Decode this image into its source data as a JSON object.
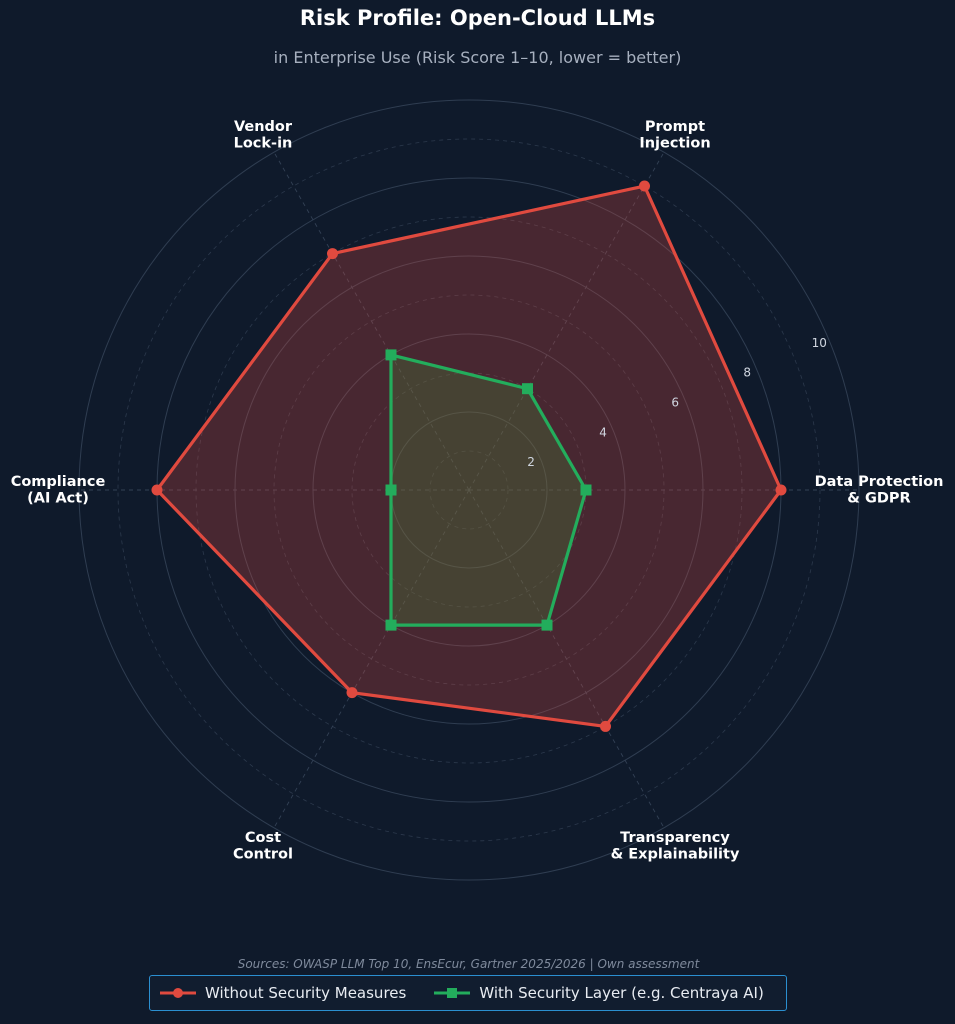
{
  "chart_data": {
    "type": "radar",
    "title": "Risk Profile: Open-Cloud LLMs",
    "subtitle": "in Enterprise Use (Risk Score 1–10, lower = better)",
    "axes": [
      "Data Protection\n& GDPR",
      "Prompt\nInjection",
      "Vendor\nLock-in",
      "Compliance\n(AI Act)",
      "Cost\nControl",
      "Transparency\n& Explainability"
    ],
    "rlim": [
      0,
      10
    ],
    "rticks": [
      2,
      4,
      6,
      8,
      10
    ],
    "grid": true,
    "series": [
      {
        "name": "Without Security Measures",
        "values": [
          8,
          9,
          7,
          8,
          6,
          7
        ],
        "color": "#e04a3f",
        "fill": "#e04a3f",
        "marker": "circle"
      },
      {
        "name": "With Security Layer (e.g. Centraya AI)",
        "values": [
          3,
          3,
          4,
          2,
          4,
          4
        ],
        "color": "#23ad5c",
        "fill": "#3f8a3a",
        "marker": "square"
      }
    ],
    "legend": "bottom-center",
    "source": "Sources: OWASP LLM Top 10, EnsEcur, Gartner 2025/2026 | Own assessment"
  },
  "colors": {
    "background": "#0f1a2b",
    "grid": "#334155",
    "label": "#ffffff"
  }
}
